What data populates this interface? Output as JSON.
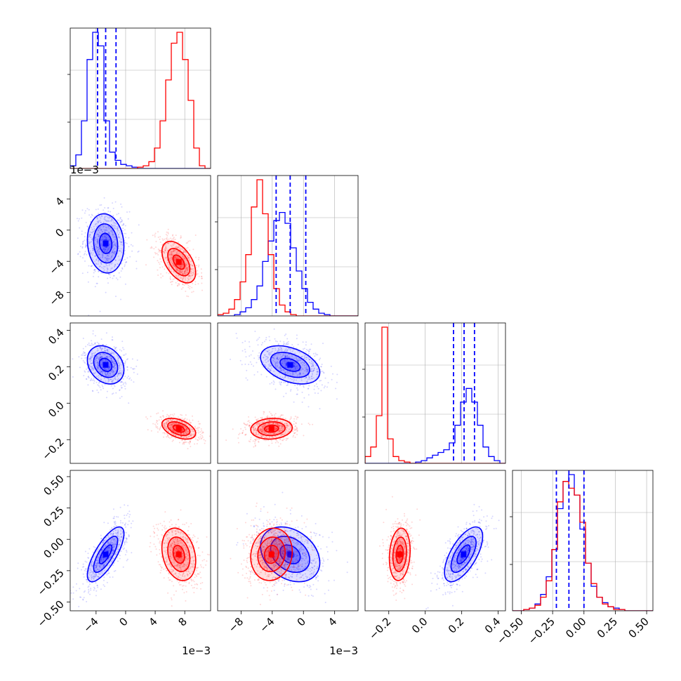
{
  "chart_data": {
    "type": "corner",
    "parameters": 4,
    "colors": {
      "series_a": "#0000ff",
      "series_b": "#ff0000"
    },
    "quantile_color": "#0000ff",
    "grid": true,
    "axes": [
      {
        "range": [
          -0.0075,
          0.0115
        ],
        "ticks": [
          -0.004,
          0,
          0.004,
          0.008
        ],
        "tick_labels": [
          "−4",
          "0",
          "4",
          "8"
        ],
        "offset_label": "1e−3"
      },
      {
        "range": [
          -0.011,
          0.007
        ],
        "ticks": [
          -0.008,
          -0.004,
          0,
          0.004
        ],
        "tick_labels": [
          "−8",
          "−4",
          "0",
          "4"
        ],
        "offset_label": "1e−3"
      },
      {
        "range": [
          -0.33,
          0.44
        ],
        "ticks": [
          -0.2,
          0,
          0.2,
          0.4
        ],
        "tick_labels": [
          "−0.2",
          "0.0",
          "0.2",
          "0.4"
        ],
        "offset_label": ""
      },
      {
        "range": [
          -0.57,
          0.55
        ],
        "ticks": [
          -0.5,
          -0.25,
          0,
          0.25,
          0.5
        ],
        "tick_labels": [
          "−0.50",
          "−0.25",
          "0.00",
          "0.25",
          "0.50"
        ],
        "offset_label": ""
      }
    ],
    "series": [
      {
        "color": "blue",
        "means": [
          -0.0027,
          -0.0017,
          0.21,
          -0.12
        ],
        "sds": [
          0.0013,
          0.002,
          0.055,
          0.115
        ],
        "corr": {
          "0_1": -0.1,
          "0_2": -0.25,
          "0_3": 0.75,
          "1_2": -0.4,
          "1_3": -0.3,
          "2_3": 0.65
        },
        "quantiles": [
          [
            -0.0038,
            -0.0027,
            -0.0013
          ],
          [
            -0.0035,
            -0.0017,
            0.0003
          ],
          [
            0.155,
            0.213,
            0.27
          ],
          [
            -0.22,
            -0.12,
            0.0
          ]
        ]
      },
      {
        "color": "red",
        "means": [
          0.0072,
          -0.0041,
          -0.14,
          -0.12
        ],
        "sds": [
          0.0012,
          0.0014,
          0.03,
          0.11
        ],
        "corr": {
          "0_1": -0.5,
          "0_2": -0.45,
          "0_3": -0.25,
          "1_2": 0.1,
          "1_3": 0.1,
          "2_3": 0.15
        },
        "quantiles": []
      }
    ],
    "histograms": [
      {
        "panel": "0_0",
        "bins": [
          -0.0075,
          0.0115,
          25
        ],
        "blue": [
          0.02,
          0.1,
          0.35,
          0.8,
          1.0,
          0.9,
          0.35,
          0.12,
          0.06,
          0.03,
          0.02,
          0.01,
          0,
          0,
          0,
          0,
          0,
          0,
          0,
          0,
          0,
          0,
          0,
          0,
          0
        ],
        "red": [
          0,
          0,
          0,
          0,
          0,
          0,
          0,
          0,
          0,
          0,
          0,
          0,
          0.01,
          0.02,
          0.05,
          0.15,
          0.35,
          0.65,
          0.92,
          1.0,
          0.8,
          0.5,
          0.15,
          0.02,
          0
        ]
      },
      {
        "panel": "1_1",
        "bins": [
          -0.011,
          0.007,
          25
        ],
        "blue": [
          0,
          0,
          0,
          0.01,
          0.03,
          0.06,
          0.12,
          0.22,
          0.4,
          0.55,
          0.7,
          0.76,
          0.68,
          0.5,
          0.33,
          0.2,
          0.1,
          0.05,
          0.02,
          0.01,
          0,
          0,
          0,
          0,
          0
        ],
        "red": [
          0.01,
          0.02,
          0.05,
          0.12,
          0.25,
          0.45,
          0.8,
          1.0,
          0.75,
          0.45,
          0.2,
          0.08,
          0.03,
          0.01,
          0,
          0,
          0,
          0,
          0,
          0,
          0,
          0,
          0,
          0,
          0
        ]
      },
      {
        "panel": "2_2",
        "bins": [
          -0.33,
          0.44,
          25
        ],
        "blue": [
          0,
          0,
          0,
          0,
          0,
          0,
          0,
          0,
          0,
          0.01,
          0.02,
          0.04,
          0.06,
          0.08,
          0.1,
          0.15,
          0.28,
          0.45,
          0.55,
          0.45,
          0.28,
          0.12,
          0.05,
          0.02,
          0
        ],
        "red": [
          0.05,
          0.12,
          0.35,
          1.0,
          0.18,
          0.05,
          0.02,
          0.01,
          0,
          0,
          0,
          0,
          0,
          0,
          0,
          0,
          0,
          0,
          0,
          0,
          0,
          0,
          0,
          0,
          0
        ]
      },
      {
        "panel": "3_3",
        "bins": [
          -0.57,
          0.55,
          25
        ],
        "blue": [
          0,
          0,
          0.01,
          0.02,
          0.05,
          0.12,
          0.25,
          0.45,
          0.75,
          0.95,
          1.0,
          0.85,
          0.6,
          0.35,
          0.18,
          0.1,
          0.06,
          0.03,
          0.02,
          0.01,
          0,
          0,
          0,
          0,
          0
        ],
        "red": [
          0,
          0,
          0.01,
          0.02,
          0.04,
          0.1,
          0.22,
          0.45,
          0.8,
          0.95,
          0.9,
          0.85,
          0.65,
          0.35,
          0.2,
          0.1,
          0.05,
          0.03,
          0.01,
          0.01,
          0,
          0,
          0,
          0,
          0
        ]
      }
    ]
  }
}
